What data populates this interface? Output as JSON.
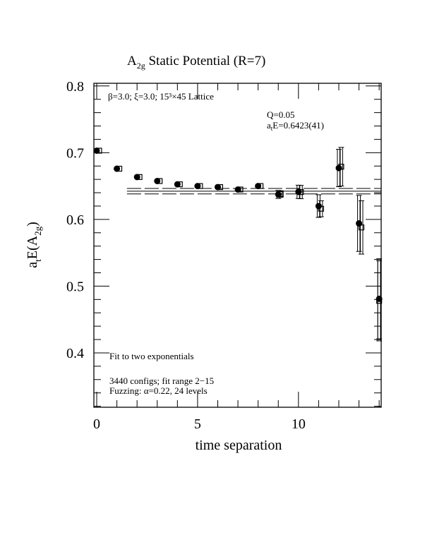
{
  "chart_data": {
    "type": "scatter",
    "title": "A",
    "title_sub": "2g",
    "title_rest": " Static Potential (R=7)",
    "xlabel": "time separation",
    "ylabel_main": "a",
    "ylabel_sub1": "t",
    "ylabel_mid": "E(A",
    "ylabel_sub2": "2g",
    "ylabel_end": ")",
    "xlim": [
      -0.14,
      14.1
    ],
    "ylim": [
      0.3185,
      0.804
    ],
    "x_ticks": [
      "0",
      "5",
      "10"
    ],
    "x_tick_values": [
      0,
      5,
      10
    ],
    "y_ticks": [
      "0.4",
      "0.5",
      "0.6",
      "0.7",
      "0.8"
    ],
    "y_tick_values": [
      0.4,
      0.5,
      0.6,
      0.7,
      0.8
    ],
    "annotations": {
      "lattice": "β=3.0; ξ=3.0; 15³×45 Lattice",
      "q": "Q=0.05",
      "energy_a": "a",
      "energy_sub": "t",
      "energy_rest": "E=0.6423(41)",
      "fit": "Fit to two exponentials",
      "configs": "3440 configs; fit range 2−15",
      "fuzzing": "Fuzzing: α=0.22, 24 levels"
    },
    "fit": {
      "value": 0.6423,
      "error": 0.0041,
      "t_start": 1.5,
      "t_end": 14.1
    },
    "series": [
      {
        "name": "filled-circles",
        "marker": "circle",
        "x": [
          0,
          1,
          2,
          3,
          4,
          5,
          6,
          7,
          8,
          9,
          10,
          11,
          12,
          13,
          14
        ],
        "y": [
          0.703,
          0.676,
          0.6635,
          0.6575,
          0.6526,
          0.65,
          0.6484,
          0.6448,
          0.65,
          0.6374,
          0.6413,
          0.62,
          0.677,
          0.594,
          0.481
        ],
        "err": [
          0.001,
          0.001,
          0.001,
          0.001,
          0.001,
          0.001,
          0.001,
          0.0015,
          0.002,
          0.006,
          0.01,
          0.017,
          0.028,
          0.042,
          0.06
        ]
      },
      {
        "name": "open-squares",
        "marker": "square",
        "x": [
          0.12,
          1.12,
          2.12,
          3.12,
          4.12,
          5.12,
          6.12,
          7.12,
          8.12,
          9.12,
          10.12,
          11.12,
          12.12,
          13.12,
          14.0
        ],
        "y": [
          0.703,
          0.676,
          0.6635,
          0.6575,
          0.6526,
          0.65,
          0.6484,
          0.6448,
          0.65,
          0.638,
          0.641,
          0.616,
          0.679,
          0.588,
          0.478
        ],
        "err": [
          0.001,
          0.001,
          0.001,
          0.001,
          0.001,
          0.001,
          0.001,
          0.0015,
          0.002,
          0.005,
          0.01,
          0.012,
          0.029,
          0.04,
          0.06
        ]
      }
    ]
  }
}
